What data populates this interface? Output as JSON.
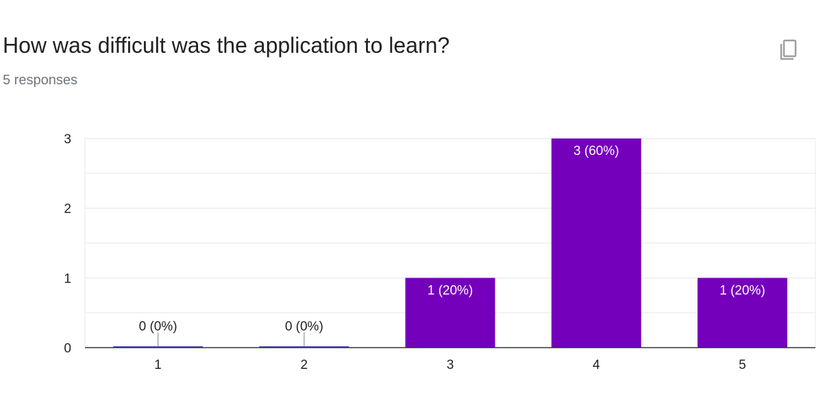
{
  "question": {
    "title": "How was difficult was the application to learn?",
    "responses_label": "5 responses"
  },
  "toolbar": {
    "copy_icon": "copy-icon"
  },
  "colors": {
    "bar": "#7500bb",
    "zero_bar": "#3f51b5",
    "grid": "#e8e8e8",
    "axis": "#333333",
    "tick_text": "#222222",
    "label_inside": "#ffffff",
    "label_outside": "#222222",
    "icon": "#9e9e9e"
  },
  "chart_data": {
    "type": "bar",
    "categories": [
      "1",
      "2",
      "3",
      "4",
      "5"
    ],
    "values": [
      0,
      0,
      1,
      3,
      1
    ],
    "data_labels": [
      "0 (0%)",
      "0 (0%)",
      "1 (20%)",
      "3 (60%)",
      "1 (20%)"
    ],
    "y_ticks": [
      "0",
      "1",
      "2",
      "3"
    ],
    "ylim": [
      0,
      3
    ],
    "grid": true,
    "legend": "none"
  }
}
